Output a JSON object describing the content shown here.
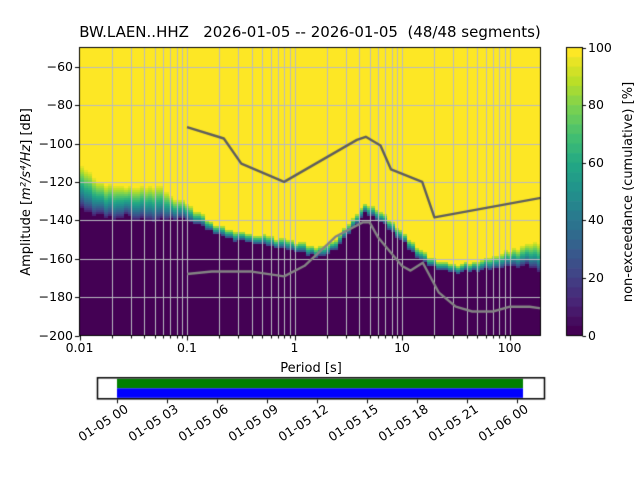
{
  "chart_data": {
    "type": "heatmap",
    "subtype": "ppsd-cumulative-spectrogram",
    "title": "BW.LAEN..HHZ   2026-01-05 -- 2026-01-05  (48/48 segments)",
    "xlabel": "Period [s]",
    "ylabel": {
      "prefix": "Amplitude [",
      "units": "m²/s⁴/Hz",
      "suffix": "] [dB]"
    },
    "colorbar_label": "non-exceedance (cumulative) [%]",
    "x_scale": "log",
    "grid": true,
    "xlim": [
      0.01,
      194
    ],
    "ylim": [
      -200,
      -50
    ],
    "x_ticks": [
      {
        "value": 0.01,
        "label": "0.01"
      },
      {
        "value": 0.1,
        "label": "0.1"
      },
      {
        "value": 1,
        "label": "1"
      },
      {
        "value": 10,
        "label": "10"
      },
      {
        "value": 100,
        "label": "100"
      }
    ],
    "y_ticks": [
      {
        "value": -60,
        "label": "−60"
      },
      {
        "value": -80,
        "label": "−80"
      },
      {
        "value": -100,
        "label": "−100"
      },
      {
        "value": -120,
        "label": "−120"
      },
      {
        "value": -140,
        "label": "−140"
      },
      {
        "value": -160,
        "label": "−160"
      },
      {
        "value": -180,
        "label": "−180"
      },
      {
        "value": -200,
        "label": "−200"
      }
    ],
    "colorbar": {
      "min": 0,
      "max": 100,
      "steps": 30,
      "ticks": [
        {
          "value": 0,
          "label": "0"
        },
        {
          "value": 20,
          "label": "20"
        },
        {
          "value": 40,
          "label": "40"
        },
        {
          "value": 60,
          "label": "60"
        },
        {
          "value": 80,
          "label": "80"
        },
        {
          "value": 100,
          "label": "100"
        }
      ]
    },
    "colors": {
      "viridis": [
        "#440154",
        "#482475",
        "#414487",
        "#355f8d",
        "#2a788e",
        "#21918c",
        "#22a884",
        "#44bf70",
        "#7ad151",
        "#bddf26",
        "#fde725"
      ],
      "background": "#440154",
      "peak": "#fde725",
      "grid": "#b9bac0",
      "spine": "#000000",
      "nhnm": "#5e5e5e",
      "nlnm": "#848484",
      "timeline_green": "#008000",
      "timeline_blue": "#0000ff"
    },
    "band": {
      "description": "transition band of cumulative PPSD: dB where non-exceedance drops from 100% (top) to 0% (bottom)",
      "period_step_octaves": 0.125,
      "periods": [
        0.0105,
        0.0118,
        0.013,
        0.0145,
        0.017,
        0.021,
        0.026,
        0.028,
        0.03,
        0.04,
        0.05,
        0.06,
        0.069,
        0.08,
        0.1,
        0.13,
        0.18,
        0.25,
        0.38,
        0.58,
        1.0,
        1.54,
        1.9,
        2.35,
        2.9,
        3.6,
        4.4,
        5.5,
        6.9,
        8.5,
        10.5,
        13.8,
        18,
        24.8,
        36,
        50,
        72,
        104,
        146,
        194
      ],
      "top_db": [
        -111.5,
        -113,
        -115,
        -119,
        -120.5,
        -121,
        -121.5,
        -121.5,
        -121.5,
        -122,
        -121.5,
        -121.5,
        -125.9,
        -128,
        -130.6,
        -135.3,
        -141,
        -144,
        -145.8,
        -147.4,
        -150,
        -152.6,
        -152.6,
        -149.5,
        -144.3,
        -136.5,
        -130.8,
        -132.3,
        -136.5,
        -141.2,
        -145.8,
        -153.1,
        -158.3,
        -161.4,
        -161.9,
        -160.4,
        -157.7,
        -154.6,
        -152,
        -149.9
      ],
      "bottom_db": [
        -134,
        -136,
        -136.5,
        -137,
        -138,
        -139,
        -139,
        -134,
        -139,
        -140,
        -140,
        -139.5,
        -139,
        -139,
        -140,
        -142.5,
        -146.5,
        -149.8,
        -151.4,
        -153,
        -156.1,
        -158.7,
        -158.7,
        -155.6,
        -150.5,
        -142.7,
        -136.4,
        -138,
        -142.7,
        -147.3,
        -151.9,
        -159.2,
        -163.9,
        -166.5,
        -167,
        -166,
        -164.9,
        -163.9,
        -163.9,
        -167
      ]
    },
    "noise_models": {
      "high": {
        "name": "NHNM",
        "periods": [
          0.1,
          0.22,
          0.32,
          0.8,
          3.8,
          4.6,
          6.3,
          7.9,
          15.4,
          20,
          196
        ],
        "db": [
          -91.5,
          -97.4,
          -110.5,
          -120,
          -98.1,
          -96.5,
          -101,
          -113.5,
          -120,
          -138.5,
          -128.3
        ]
      },
      "low": {
        "name": "NLNM",
        "periods": [
          0.1,
          0.17,
          0.4,
          0.8,
          1.24,
          2.4,
          4.3,
          5.0,
          6.0,
          10.0,
          12.0,
          15.6,
          21.9,
          31.6,
          45,
          70,
          101,
          154,
          196
        ],
        "db": [
          -168,
          -166.7,
          -166.7,
          -169.2,
          -163.7,
          -148.6,
          -141.1,
          -141.1,
          -149,
          -163.8,
          -166.2,
          -162.1,
          -177.5,
          -185,
          -187.5,
          -187.5,
          -185,
          -185,
          -185.9
        ]
      }
    },
    "timeline": {
      "tick_labels": [
        "01-05 00",
        "01-05 03",
        "01-05 06",
        "01-05 09",
        "01-05 12",
        "01-05 15",
        "01-05 18",
        "01-05 21",
        "01-06 00"
      ],
      "coverage": "continuous"
    }
  }
}
